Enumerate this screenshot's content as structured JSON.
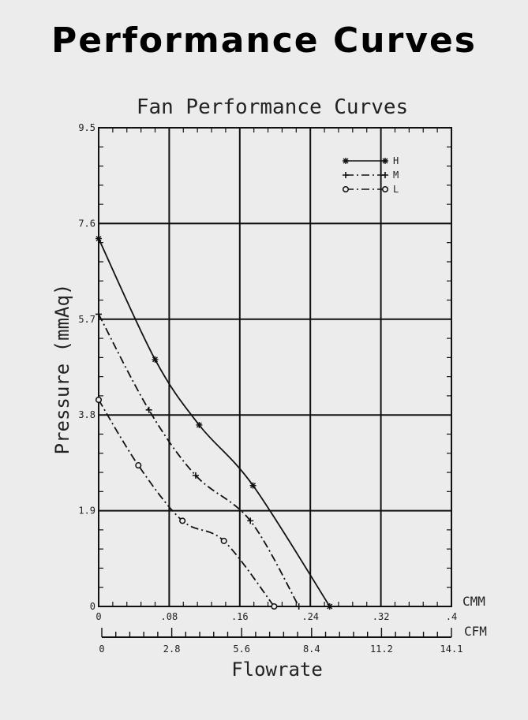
{
  "page": {
    "heading": "Performance Curves"
  },
  "chart_data": {
    "type": "line",
    "title": "Fan Performance Curves",
    "xlabel": "Flowrate",
    "ylabel": "Pressure (mmAq)",
    "xlim": [
      0,
      0.4
    ],
    "ylim": [
      0,
      9.5
    ],
    "x_unit_primary": "CMM",
    "x_unit_secondary": "CFM",
    "y_ticks": [
      "9.5",
      "7.6",
      "5.7",
      "3.8",
      "1.9",
      "0"
    ],
    "x_ticks_cmm": [
      "0",
      ".08",
      ".16",
      ".24",
      ".32",
      ".4"
    ],
    "x_ticks_cfm": [
      "0",
      "2.8",
      "5.6",
      "8.4",
      "11.2",
      "14.1"
    ],
    "grid": true,
    "legend_position": "top-right",
    "series": [
      {
        "name": "H",
        "style": "solid",
        "marker": "star",
        "x": [
          0,
          0.064,
          0.114,
          0.175,
          0.262
        ],
        "y": [
          7.3,
          4.9,
          3.6,
          2.4,
          0
        ]
      },
      {
        "name": "M",
        "style": "dash-dot",
        "marker": "plus",
        "x": [
          0,
          0.057,
          0.11,
          0.172,
          0.227
        ],
        "y": [
          5.8,
          3.9,
          2.6,
          1.7,
          0
        ]
      },
      {
        "name": "L",
        "style": "dash-dot",
        "marker": "circle",
        "x": [
          0,
          0.045,
          0.095,
          0.142,
          0.199
        ],
        "y": [
          4.1,
          2.8,
          1.7,
          1.3,
          0
        ]
      }
    ]
  }
}
